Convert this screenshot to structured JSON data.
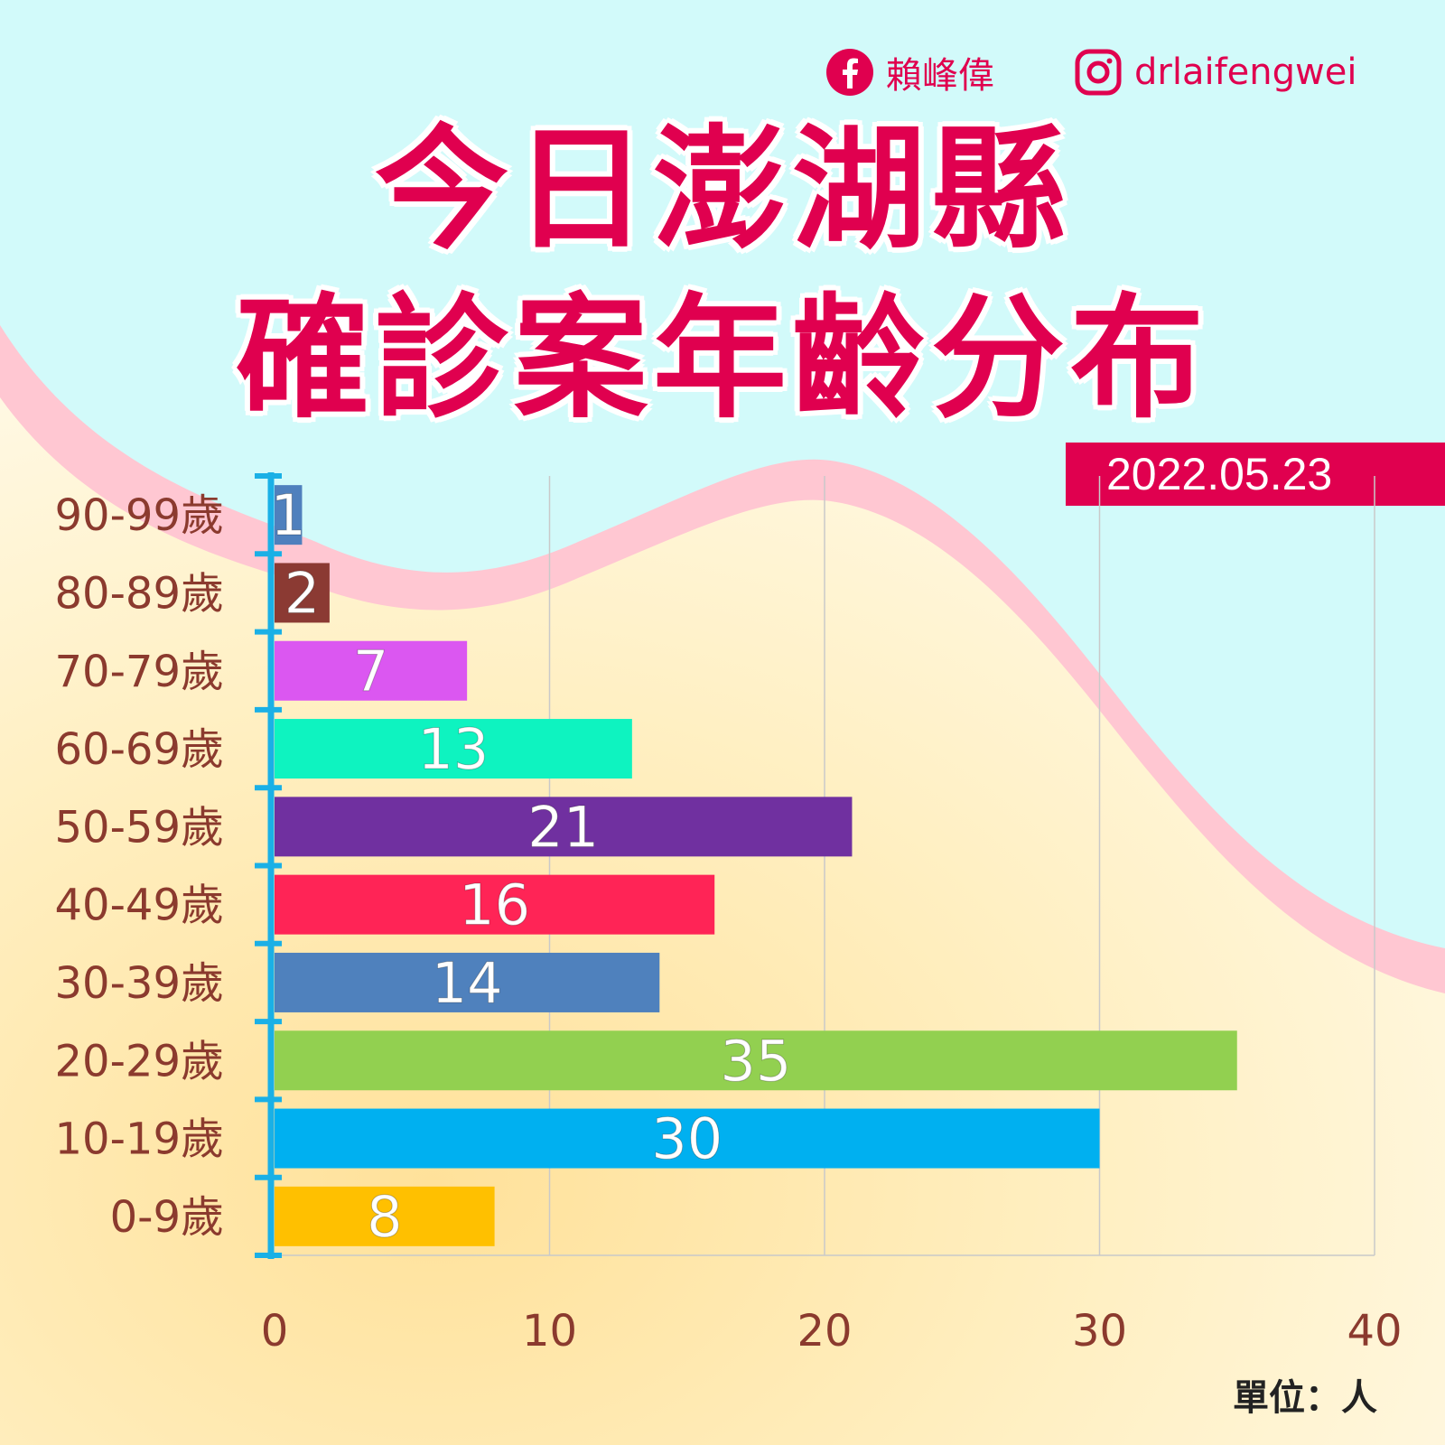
{
  "social": {
    "facebook_name": "賴峰偉",
    "instagram_handle": "drlaifengwei"
  },
  "title": {
    "line1": "今日澎湖縣",
    "line2": "確診案年齡分布"
  },
  "date": "2022.05.23",
  "unit_note": "單位：人",
  "colors": {
    "accent": "#e0004f",
    "sky": "#d2fafa",
    "wave": "#ffc7d2",
    "axis": "#1ab0e6",
    "label": "#8b3a2e"
  },
  "chart_data": {
    "type": "bar",
    "orientation": "horizontal",
    "categories": [
      "90-99歲",
      "80-89歲",
      "70-79歲",
      "60-69歲",
      "50-59歲",
      "40-49歲",
      "30-39歲",
      "20-29歲",
      "10-19歲",
      "0-9歲"
    ],
    "values": [
      1,
      2,
      7,
      13,
      21,
      16,
      14,
      35,
      30,
      8
    ],
    "bar_colors": [
      "#4f80bd",
      "#8b3a33",
      "#db57f1",
      "#0ef3c0",
      "#7030a0",
      "#ff2456",
      "#4f81bd",
      "#92d050",
      "#00b0f0",
      "#ffc000"
    ],
    "xlim": [
      0,
      40
    ],
    "xticks": [
      "0",
      "10",
      "20",
      "30",
      "40"
    ],
    "grid": true,
    "xlabel": "",
    "ylabel": ""
  }
}
